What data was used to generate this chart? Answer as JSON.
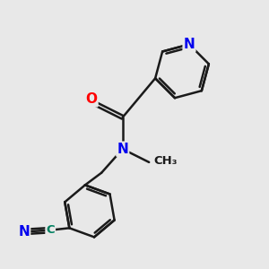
{
  "background_color": "#e8e8e8",
  "bond_color": "#1a1a1a",
  "bond_width": 1.8,
  "atom_colors": {
    "N": "#0000ee",
    "O": "#ff0000",
    "C_cn": "#008060",
    "N_cn": "#0000ee",
    "default": "#1a1a1a"
  },
  "figsize": [
    3.0,
    3.0
  ],
  "dpi": 100
}
